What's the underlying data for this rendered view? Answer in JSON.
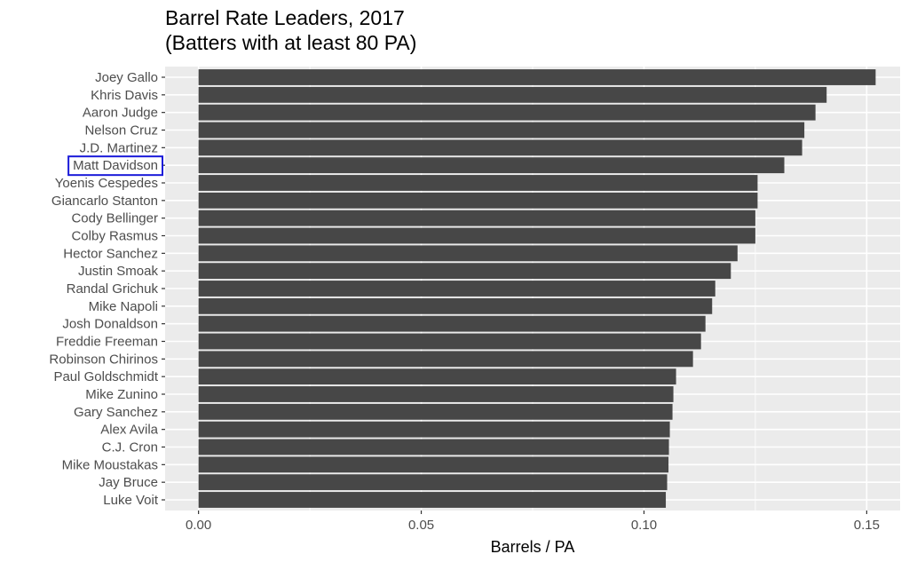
{
  "chart_data": {
    "type": "bar",
    "orientation": "horizontal",
    "title": "Barrel Rate Leaders, 2017",
    "subtitle": "(Batters with at least 80 PA)",
    "xlabel": "Barrels / PA",
    "ylabel": "",
    "xlim": [
      -0.0075,
      0.1575
    ],
    "xticks": [
      0.0,
      0.05,
      0.1,
      0.15
    ],
    "xtick_labels": [
      "0.00",
      "0.05",
      "0.10",
      "0.15"
    ],
    "grid": true,
    "legend": "none",
    "categories": [
      "Joey Gallo",
      "Khris Davis",
      "Aaron Judge",
      "Nelson Cruz",
      "J.D. Martinez",
      "Matt Davidson",
      "Yoenis Cespedes",
      "Giancarlo Stanton",
      "Cody Bellinger",
      "Colby Rasmus",
      "Hector Sanchez",
      "Justin Smoak",
      "Randal Grichuk",
      "Mike Napoli",
      "Josh Donaldson",
      "Freddie Freeman",
      "Robinson Chirinos",
      "Paul Goldschmidt",
      "Mike Zunino",
      "Gary Sanchez",
      "Alex Avila",
      "C.J. Cron",
      "Mike Moustakas",
      "Jay Bruce",
      "Luke Voit"
    ],
    "values": [
      0.152,
      0.141,
      0.1385,
      0.136,
      0.1355,
      0.1315,
      0.1255,
      0.1255,
      0.125,
      0.125,
      0.121,
      0.1195,
      0.116,
      0.1153,
      0.1138,
      0.1128,
      0.111,
      0.1072,
      0.1066,
      0.1064,
      0.1058,
      0.1056,
      0.1055,
      0.1052,
      0.1049
    ],
    "highlighted_category": "Matt Davidson",
    "colors": {
      "bar": "#474747",
      "panel_background": "#ebebeb",
      "gridline": "#ffffff",
      "highlight_box": "#1a1ad9"
    }
  }
}
